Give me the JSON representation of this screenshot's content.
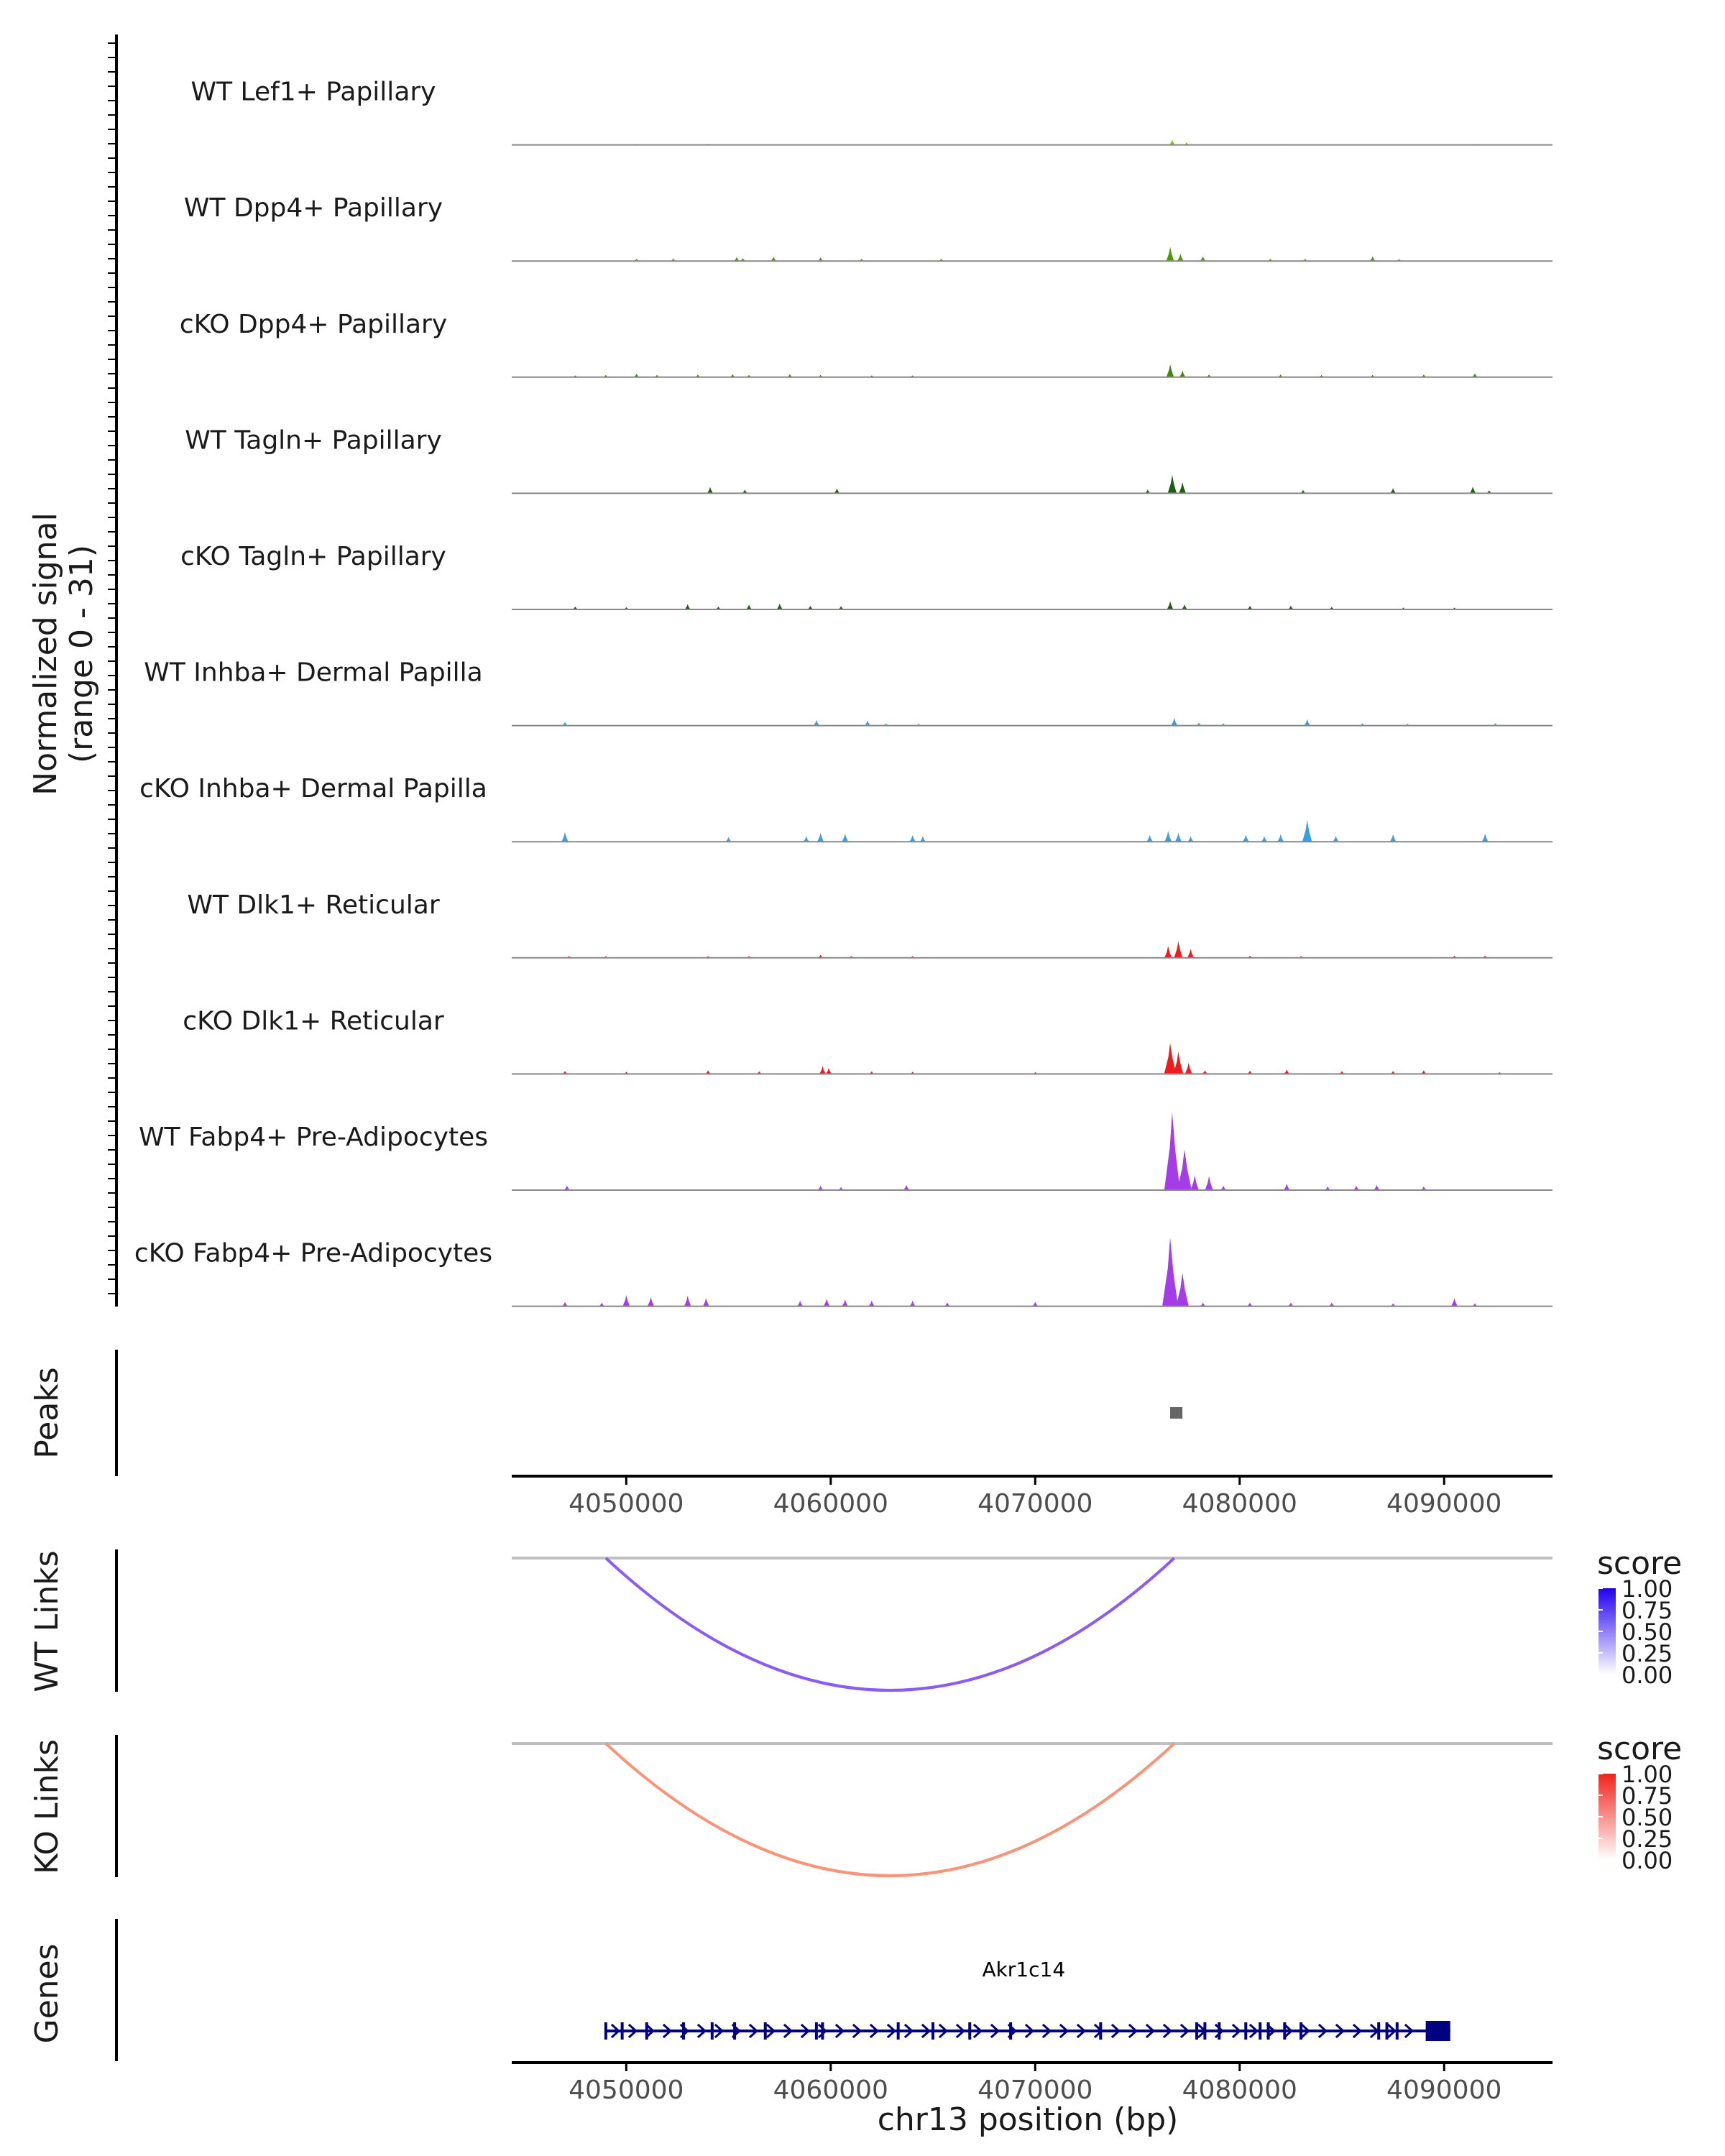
{
  "colors": {
    "lef1": "#7ac70b",
    "dpp4_wt": "#4e9a06",
    "dpp4_cko": "#3d8a06",
    "tagln": "#1c5f0f",
    "inhba": "#3d9de0",
    "dlk1": "#ee1c1c",
    "fabp4": "#a43ce8",
    "peak": "#666666",
    "wt_link": "#8a5cf5",
    "ko_link": "#f7947a",
    "gene": "#000080",
    "baseline": "#888888",
    "link_baseline": "#bfbfbf"
  },
  "chart_data": {
    "type": "coverage",
    "chromosome": "chr13",
    "xlim": [
      4044400,
      4095300
    ],
    "xlabel": "chr13 position (bp)",
    "x_ticks": [
      4050000,
      4060000,
      4070000,
      4080000,
      4090000
    ],
    "x_tick_labels": [
      "4050000",
      "4060000",
      "4070000",
      "4080000",
      "4090000"
    ],
    "signal_axis_label": [
      "Normalized signal",
      "(range 0 - 31)"
    ],
    "signal_range": [
      0,
      31
    ],
    "tracks": [
      {
        "name": "WT Lef1+ Papillary",
        "color_key": "lef1",
        "peaks": [
          [
            4050500,
            0.25
          ],
          [
            4054000,
            0.3
          ],
          [
            4058000,
            0.25
          ],
          [
            4076700,
            1.4
          ],
          [
            4077400,
            0.7
          ],
          [
            4082000,
            0.25
          ],
          [
            4091500,
            0.3
          ]
        ]
      },
      {
        "name": "WT Dpp4+ Papillary",
        "color_key": "dpp4_wt",
        "peaks": [
          [
            4050500,
            0.6
          ],
          [
            4052300,
            0.7
          ],
          [
            4055400,
            1.1
          ],
          [
            4055700,
            0.8
          ],
          [
            4057200,
            1.2
          ],
          [
            4059500,
            1.0
          ],
          [
            4061500,
            0.6
          ],
          [
            4065400,
            0.6
          ],
          [
            4076600,
            3.8
          ],
          [
            4077100,
            2.0
          ],
          [
            4078200,
            1.3
          ],
          [
            4081500,
            0.6
          ],
          [
            4083200,
            0.6
          ],
          [
            4086500,
            1.3
          ],
          [
            4087800,
            0.5
          ]
        ]
      },
      {
        "name": "cKO Dpp4+ Papillary",
        "color_key": "dpp4_cko",
        "peaks": [
          [
            4047500,
            0.5
          ],
          [
            4049000,
            0.6
          ],
          [
            4050500,
            0.9
          ],
          [
            4051500,
            0.6
          ],
          [
            4053500,
            0.7
          ],
          [
            4055200,
            0.8
          ],
          [
            4056000,
            0.6
          ],
          [
            4058000,
            0.8
          ],
          [
            4059500,
            0.6
          ],
          [
            4062000,
            0.5
          ],
          [
            4064000,
            0.5
          ],
          [
            4076600,
            3.5
          ],
          [
            4077200,
            1.8
          ],
          [
            4078500,
            0.7
          ],
          [
            4082000,
            0.7
          ],
          [
            4084000,
            0.6
          ],
          [
            4086500,
            0.6
          ],
          [
            4089000,
            0.7
          ],
          [
            4091500,
            1.0
          ]
        ]
      },
      {
        "name": "WT Tagln+ Papillary",
        "color_key": "tagln",
        "peaks": [
          [
            4054100,
            1.7
          ],
          [
            4055800,
            1.0
          ],
          [
            4060300,
            1.3
          ],
          [
            4075500,
            1.0
          ],
          [
            4076700,
            5.0
          ],
          [
            4077200,
            3.0
          ],
          [
            4083100,
            0.9
          ],
          [
            4087500,
            1.4
          ],
          [
            4091400,
            1.8
          ],
          [
            4092200,
            0.8
          ]
        ]
      },
      {
        "name": "cKO Tagln+ Papillary",
        "color_key": "tagln",
        "peaks": [
          [
            4047500,
            0.8
          ],
          [
            4050000,
            0.6
          ],
          [
            4053000,
            1.4
          ],
          [
            4054500,
            0.8
          ],
          [
            4056000,
            1.3
          ],
          [
            4057500,
            1.6
          ],
          [
            4059000,
            1.0
          ],
          [
            4060500,
            0.9
          ],
          [
            4076600,
            2.2
          ],
          [
            4077300,
            1.3
          ],
          [
            4080500,
            1.0
          ],
          [
            4082500,
            1.0
          ],
          [
            4084500,
            0.7
          ],
          [
            4088000,
            0.5
          ],
          [
            4090500,
            0.5
          ]
        ]
      },
      {
        "name": "WT Inhba+ Dermal Papilla",
        "color_key": "inhba",
        "peaks": [
          [
            4047000,
            1.0
          ],
          [
            4059300,
            1.5
          ],
          [
            4061800,
            1.4
          ],
          [
            4062700,
            0.6
          ],
          [
            4064300,
            0.5
          ],
          [
            4076800,
            2.1
          ],
          [
            4078000,
            0.8
          ],
          [
            4079200,
            0.6
          ],
          [
            4083300,
            1.7
          ],
          [
            4086000,
            0.6
          ],
          [
            4088200,
            0.5
          ],
          [
            4092500,
            0.6
          ]
        ]
      },
      {
        "name": "cKO Inhba+ Dermal Papilla",
        "color_key": "inhba",
        "peaks": [
          [
            4047000,
            2.6
          ],
          [
            4055000,
            1.3
          ],
          [
            4058800,
            1.5
          ],
          [
            4059500,
            2.4
          ],
          [
            4060700,
            2.2
          ],
          [
            4064000,
            1.8
          ],
          [
            4064500,
            1.5
          ],
          [
            4075600,
            1.8
          ],
          [
            4076500,
            2.9
          ],
          [
            4077000,
            2.4
          ],
          [
            4077600,
            1.5
          ],
          [
            4080300,
            1.9
          ],
          [
            4081200,
            1.5
          ],
          [
            4082000,
            2.0
          ],
          [
            4083300,
            5.8
          ],
          [
            4084700,
            1.6
          ],
          [
            4087500,
            2.0
          ],
          [
            4092000,
            2.2
          ]
        ]
      },
      {
        "name": "WT Dlk1+ Reticular",
        "color_key": "dlk1",
        "peaks": [
          [
            4047200,
            0.5
          ],
          [
            4049000,
            0.5
          ],
          [
            4054000,
            0.5
          ],
          [
            4056000,
            0.5
          ],
          [
            4059500,
            0.8
          ],
          [
            4061000,
            0.5
          ],
          [
            4064000,
            0.5
          ],
          [
            4076500,
            3.2
          ],
          [
            4077000,
            4.5
          ],
          [
            4077600,
            2.4
          ],
          [
            4080500,
            0.6
          ],
          [
            4083000,
            0.5
          ],
          [
            4090500,
            0.6
          ],
          [
            4092000,
            0.6
          ]
        ]
      },
      {
        "name": "cKO Dlk1+ Reticular",
        "color_key": "dlk1",
        "peaks": [
          [
            4047000,
            0.8
          ],
          [
            4050000,
            0.6
          ],
          [
            4054000,
            1.0
          ],
          [
            4056500,
            0.7
          ],
          [
            4059600,
            2.1
          ],
          [
            4059900,
            1.6
          ],
          [
            4062000,
            0.7
          ],
          [
            4064000,
            0.6
          ],
          [
            4070000,
            0.5
          ],
          [
            4076600,
            8.3
          ],
          [
            4077000,
            6.0
          ],
          [
            4077500,
            3.0
          ],
          [
            4078300,
            1.0
          ],
          [
            4080500,
            0.9
          ],
          [
            4082300,
            1.2
          ],
          [
            4085000,
            0.8
          ],
          [
            4087500,
            0.8
          ],
          [
            4089000,
            1.0
          ],
          [
            4092700,
            0.5
          ]
        ]
      },
      {
        "name": "WT Fabp4+ Pre-Adipocytes",
        "color_key": "fabp4",
        "peaks": [
          [
            4047100,
            1.2
          ],
          [
            4059500,
            1.2
          ],
          [
            4060500,
            0.8
          ],
          [
            4063700,
            1.4
          ],
          [
            4076700,
            21.0
          ],
          [
            4077300,
            11.0
          ],
          [
            4077800,
            4.0
          ],
          [
            4078500,
            3.8
          ],
          [
            4079200,
            1.2
          ],
          [
            4082300,
            1.7
          ],
          [
            4084300,
            1.0
          ],
          [
            4085700,
            1.2
          ],
          [
            4086700,
            1.4
          ],
          [
            4089000,
            1.0
          ]
        ]
      },
      {
        "name": "cKO Fabp4+ Pre-Adipocytes",
        "color_key": "fabp4",
        "peaks": [
          [
            4047000,
            1.2
          ],
          [
            4048800,
            1.0
          ],
          [
            4050000,
            3.0
          ],
          [
            4051200,
            2.5
          ],
          [
            4053000,
            2.8
          ],
          [
            4053900,
            2.2
          ],
          [
            4058500,
            1.5
          ],
          [
            4059800,
            2.0
          ],
          [
            4060700,
            1.8
          ],
          [
            4062000,
            1.5
          ],
          [
            4064000,
            1.5
          ],
          [
            4065700,
            1.0
          ],
          [
            4070000,
            1.2
          ],
          [
            4076600,
            18.5
          ],
          [
            4077200,
            9.0
          ],
          [
            4078200,
            1.0
          ],
          [
            4080500,
            1.0
          ],
          [
            4082500,
            1.0
          ],
          [
            4084500,
            1.0
          ],
          [
            4087500,
            0.8
          ],
          [
            4090500,
            2.2
          ],
          [
            4091500,
            0.8
          ]
        ]
      }
    ],
    "peaks_track": {
      "label": "Peaks",
      "regions": [
        [
          4076600,
          4077200
        ]
      ]
    },
    "links": [
      {
        "label": "WT Links",
        "color_key": "wt_link",
        "start": 4049000,
        "end": 4076800,
        "score": 0.6
      },
      {
        "label": "KO Links",
        "color_key": "ko_link",
        "start": 4049000,
        "end": 4076800,
        "score": 0.45
      }
    ],
    "legends": [
      {
        "title": "score",
        "gradient": [
          "#ffffff",
          "#2200ee"
        ],
        "labels": [
          "1.00",
          "0.75",
          "0.50",
          "0.25",
          "0.00"
        ]
      },
      {
        "title": "score",
        "gradient": [
          "#ffffff",
          "#f0241c"
        ],
        "labels": [
          "1.00",
          "0.75",
          "0.50",
          "0.25",
          "0.00"
        ]
      }
    ],
    "genes_track": {
      "label": "Genes",
      "gene_name": "Akr1c14",
      "start": 4049000,
      "end": 4090300,
      "utr": [
        4089100,
        4090300
      ],
      "exon_marks": [
        4049800,
        4051000,
        4052800,
        4054200,
        4055300,
        4056800,
        4059300,
        4059600,
        4063300,
        4065000,
        4066800,
        4068800,
        4073200,
        4077900,
        4078300,
        4079000,
        4080300,
        4081000,
        4081400,
        4082200,
        4083000,
        4086800,
        4087200,
        4087700
      ]
    }
  }
}
